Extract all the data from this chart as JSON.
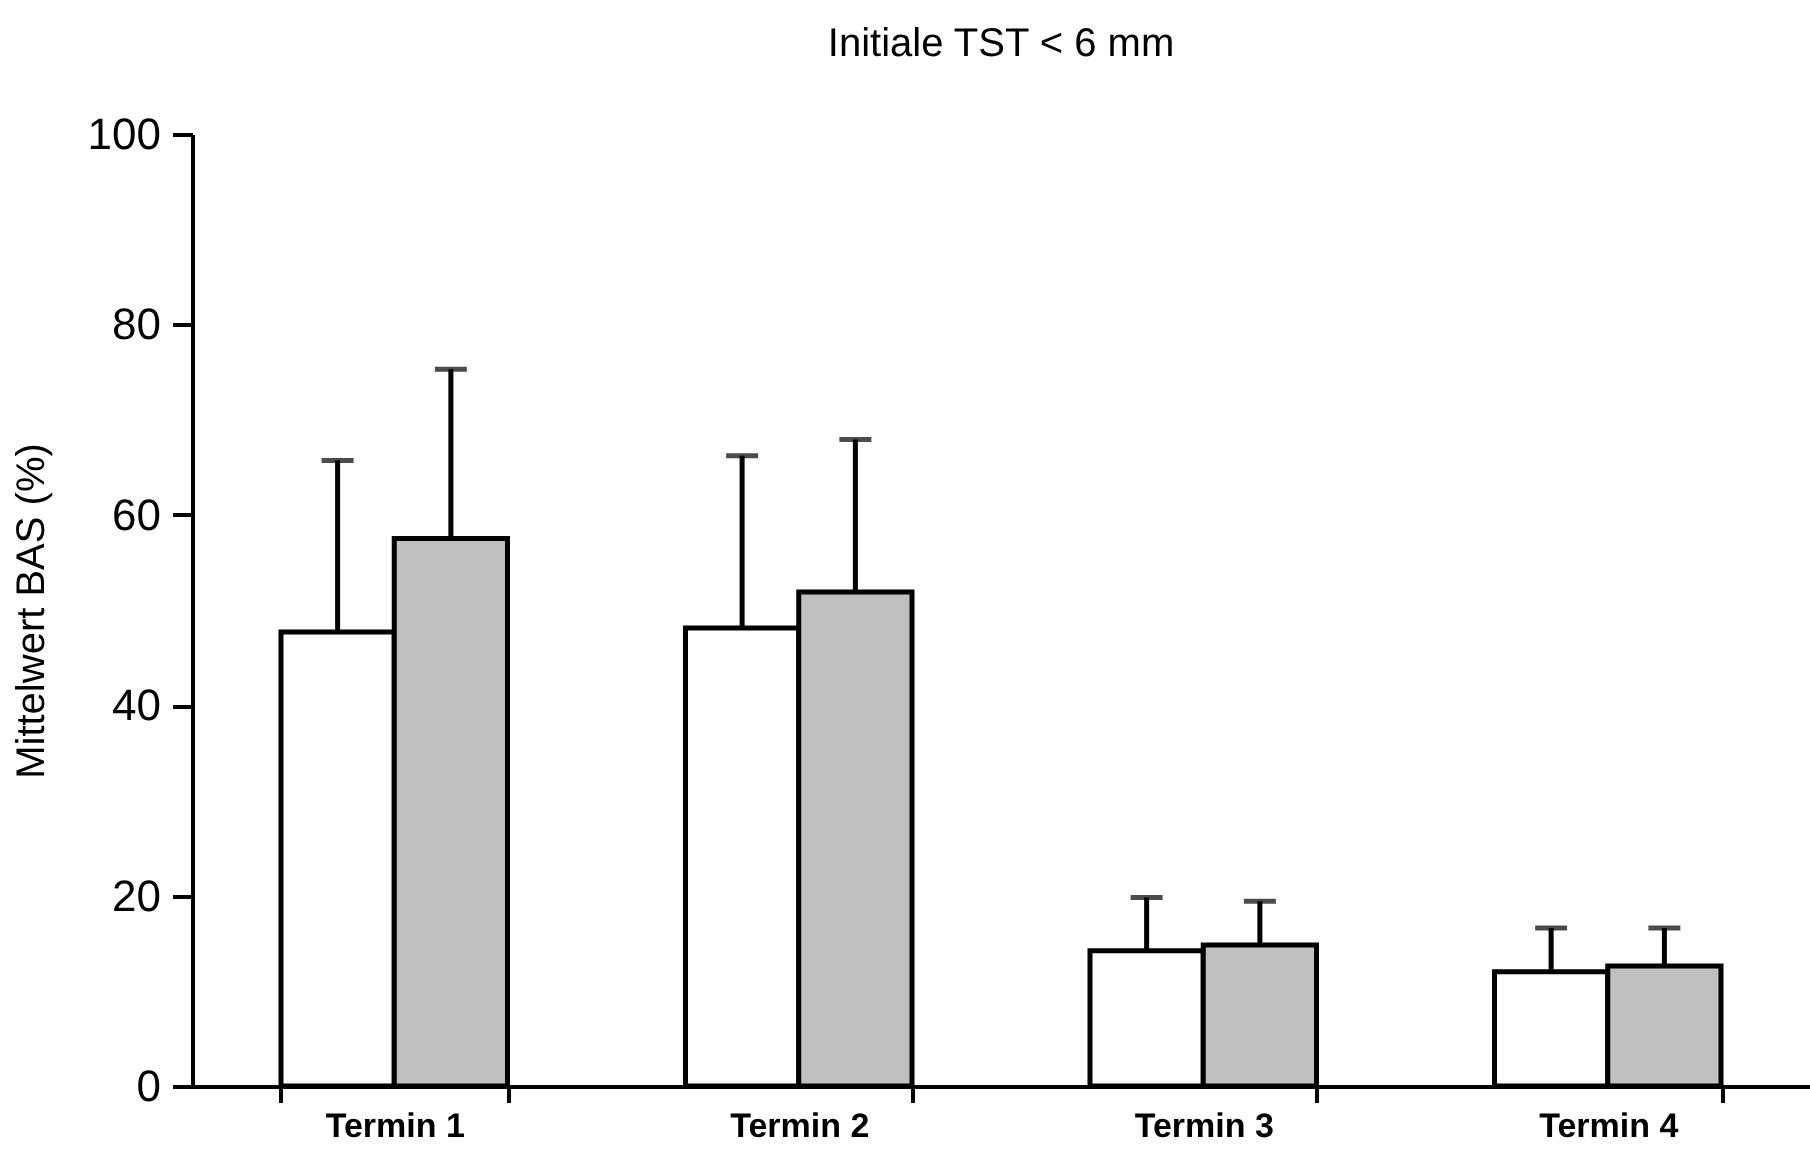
{
  "chart_data": {
    "type": "bar",
    "title": "Initiale TST < 6 mm",
    "ylabel": "Mittelwert BAS (%)",
    "categories": [
      "Termin 1",
      "Termin 2",
      "Termin 3",
      "Termin 4"
    ],
    "series": [
      {
        "color": "#ffffff",
        "values": [
          47.7,
          48.1,
          14.2,
          12.0
        ],
        "errors": [
          [
            47.7,
            65.7
          ],
          [
            48.1,
            66.2
          ],
          [
            14.2,
            19.8
          ],
          [
            12.0,
            16.6
          ]
        ]
      },
      {
        "color": "#c0c0c0",
        "values": [
          57.5,
          51.9,
          14.8,
          12.6
        ],
        "errors": [
          [
            57.5,
            75.3
          ],
          [
            51.9,
            67.9
          ],
          [
            14.8,
            19.4
          ],
          [
            12.6,
            16.6
          ]
        ]
      }
    ],
    "ylim": [
      0,
      100
    ],
    "yticks": [
      0,
      20,
      40,
      60,
      80,
      100
    ],
    "grid": false,
    "legend": false
  }
}
